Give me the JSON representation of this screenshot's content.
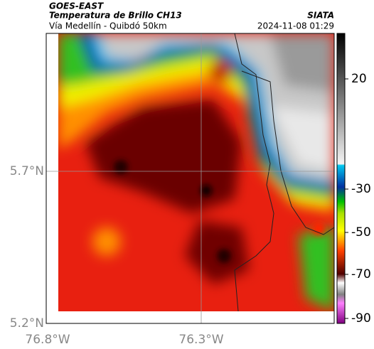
{
  "header": {
    "agency": "GOES-EAST",
    "title": "Temperatura de Brillo CH13",
    "source": "SIATA",
    "subtitle": "Vía Medellín - Quibdó 50km",
    "datetime": "2024-11-08 01:29"
  },
  "map": {
    "lat_labels": [
      "5.7°N",
      "5.2°N"
    ],
    "lon_labels": [
      "76.8°W",
      "76.3°W"
    ]
  },
  "colorbar": {
    "ticks": [
      20,
      -30,
      -50,
      -70,
      -90
    ]
  }
}
